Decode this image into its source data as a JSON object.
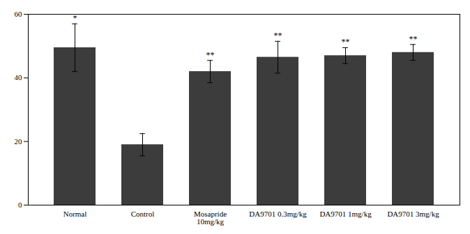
{
  "chart_data": {
    "type": "bar",
    "categories": [
      "Normal",
      "Control",
      "Mosapride\n10mg/kg",
      "DA9701 0.3mg/kg",
      "DA9701 1mg/kg",
      "DA9701 3mg/kg"
    ],
    "values": [
      49.5,
      19.0,
      42.0,
      46.5,
      47.0,
      48.0
    ],
    "errors": [
      7.5,
      3.5,
      3.5,
      5.0,
      2.5,
      2.5
    ],
    "annotations": [
      "*",
      null,
      "**",
      "**",
      "**",
      "**"
    ],
    "color": "#3c3c3c",
    "ylim": [
      0,
      60
    ],
    "yticks": [
      0,
      20,
      40,
      60
    ],
    "grid": false
  }
}
